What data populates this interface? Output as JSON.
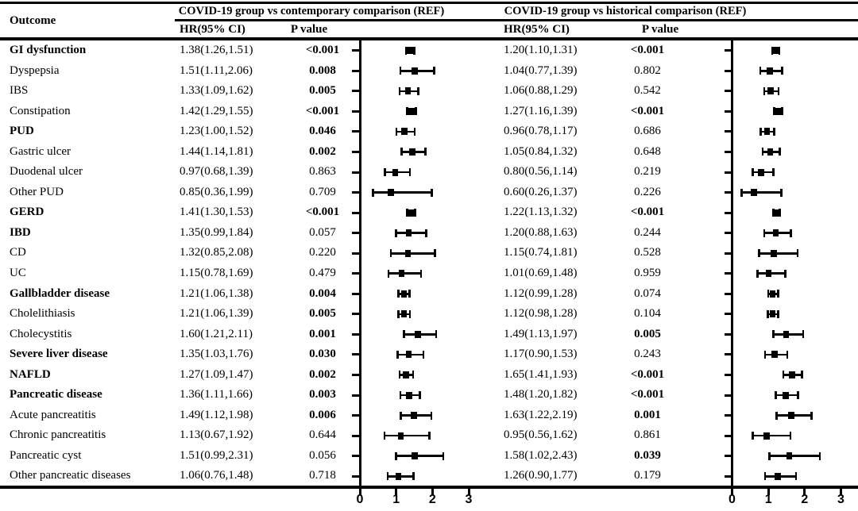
{
  "figure": {
    "outcome_header": "Outcome",
    "group_headers": [
      "COVID-19 group vs contemporary comparison (REF)",
      "COVID-19 group vs historical comparison (REF)"
    ],
    "sub_headers": {
      "hr": "HR(95% CI)",
      "p": "P value"
    }
  },
  "chart_data": {
    "type": "forest",
    "xlim": [
      0,
      3
    ],
    "xticks": [
      "0",
      "1",
      "2",
      "3"
    ],
    "groups": [
      "contemporary",
      "historical"
    ],
    "rows": [
      {
        "outcome": "GI dysfunction",
        "bold": true,
        "contemporary": {
          "hr_ci": "1.38(1.26,1.51)",
          "hr": 1.38,
          "lo": 1.26,
          "hi": 1.51,
          "p": "<0.001",
          "sig": true
        },
        "historical": {
          "hr_ci": "1.20(1.10,1.31)",
          "hr": 1.2,
          "lo": 1.1,
          "hi": 1.31,
          "p": "<0.001",
          "sig": true
        }
      },
      {
        "outcome": "Dyspepsia",
        "bold": false,
        "contemporary": {
          "hr_ci": "1.51(1.11,2.06)",
          "hr": 1.51,
          "lo": 1.11,
          "hi": 2.06,
          "p": "0.008",
          "sig": true
        },
        "historical": {
          "hr_ci": "1.04(0.77,1.39)",
          "hr": 1.04,
          "lo": 0.77,
          "hi": 1.39,
          "p": "0.802",
          "sig": false
        }
      },
      {
        "outcome": "IBS",
        "bold": false,
        "contemporary": {
          "hr_ci": "1.33(1.09,1.62)",
          "hr": 1.33,
          "lo": 1.09,
          "hi": 1.62,
          "p": "0.005",
          "sig": true
        },
        "historical": {
          "hr_ci": "1.06(0.88,1.29)",
          "hr": 1.06,
          "lo": 0.88,
          "hi": 1.29,
          "p": "0.542",
          "sig": false
        }
      },
      {
        "outcome": "Constipation",
        "bold": false,
        "contemporary": {
          "hr_ci": "1.42(1.29,1.55)",
          "hr": 1.42,
          "lo": 1.29,
          "hi": 1.55,
          "p": "<0.001",
          "sig": true
        },
        "historical": {
          "hr_ci": "1.27(1.16,1.39)",
          "hr": 1.27,
          "lo": 1.16,
          "hi": 1.39,
          "p": "<0.001",
          "sig": true
        }
      },
      {
        "outcome": "PUD",
        "bold": true,
        "contemporary": {
          "hr_ci": "1.23(1.00,1.52)",
          "hr": 1.23,
          "lo": 1.0,
          "hi": 1.52,
          "p": "0.046",
          "sig": true
        },
        "historical": {
          "hr_ci": "0.96(0.78,1.17)",
          "hr": 0.96,
          "lo": 0.78,
          "hi": 1.17,
          "p": "0.686",
          "sig": false
        }
      },
      {
        "outcome": "Gastric ulcer",
        "bold": false,
        "contemporary": {
          "hr_ci": "1.44(1.14,1.81)",
          "hr": 1.44,
          "lo": 1.14,
          "hi": 1.81,
          "p": "0.002",
          "sig": true
        },
        "historical": {
          "hr_ci": "1.05(0.84,1.32)",
          "hr": 1.05,
          "lo": 0.84,
          "hi": 1.32,
          "p": "0.648",
          "sig": false
        }
      },
      {
        "outcome": "Duodenal ulcer",
        "bold": false,
        "contemporary": {
          "hr_ci": "0.97(0.68,1.39)",
          "hr": 0.97,
          "lo": 0.68,
          "hi": 1.39,
          "p": "0.863",
          "sig": false
        },
        "historical": {
          "hr_ci": "0.80(0.56,1.14)",
          "hr": 0.8,
          "lo": 0.56,
          "hi": 1.14,
          "p": "0.219",
          "sig": false
        }
      },
      {
        "outcome": "Other PUD",
        "bold": false,
        "contemporary": {
          "hr_ci": "0.85(0.36,1.99)",
          "hr": 0.85,
          "lo": 0.36,
          "hi": 1.99,
          "p": "0.709",
          "sig": false
        },
        "historical": {
          "hr_ci": "0.60(0.26,1.37)",
          "hr": 0.6,
          "lo": 0.26,
          "hi": 1.37,
          "p": "0.226",
          "sig": false
        }
      },
      {
        "outcome": "GERD",
        "bold": true,
        "contemporary": {
          "hr_ci": "1.41(1.30,1.53)",
          "hr": 1.41,
          "lo": 1.3,
          "hi": 1.53,
          "p": "<0.001",
          "sig": true
        },
        "historical": {
          "hr_ci": "1.22(1.13,1.32)",
          "hr": 1.22,
          "lo": 1.13,
          "hi": 1.32,
          "p": "<0.001",
          "sig": true
        }
      },
      {
        "outcome": "IBD",
        "bold": true,
        "contemporary": {
          "hr_ci": "1.35(0.99,1.84)",
          "hr": 1.35,
          "lo": 0.99,
          "hi": 1.84,
          "p": "0.057",
          "sig": false
        },
        "historical": {
          "hr_ci": "1.20(0.88,1.63)",
          "hr": 1.2,
          "lo": 0.88,
          "hi": 1.63,
          "p": "0.244",
          "sig": false
        }
      },
      {
        "outcome": "CD",
        "bold": false,
        "contemporary": {
          "hr_ci": "1.32(0.85,2.08)",
          "hr": 1.32,
          "lo": 0.85,
          "hi": 2.08,
          "p": "0.220",
          "sig": false
        },
        "historical": {
          "hr_ci": "1.15(0.74,1.81)",
          "hr": 1.15,
          "lo": 0.74,
          "hi": 1.81,
          "p": "0.528",
          "sig": false
        }
      },
      {
        "outcome": "UC",
        "bold": false,
        "contemporary": {
          "hr_ci": "1.15(0.78,1.69)",
          "hr": 1.15,
          "lo": 0.78,
          "hi": 1.69,
          "p": "0.479",
          "sig": false
        },
        "historical": {
          "hr_ci": "1.01(0.69,1.48)",
          "hr": 1.01,
          "lo": 0.69,
          "hi": 1.48,
          "p": "0.959",
          "sig": false
        }
      },
      {
        "outcome": "Gallbladder disease",
        "bold": true,
        "contemporary": {
          "hr_ci": "1.21(1.06,1.38)",
          "hr": 1.21,
          "lo": 1.06,
          "hi": 1.38,
          "p": "0.004",
          "sig": true
        },
        "historical": {
          "hr_ci": "1.12(0.99,1.28)",
          "hr": 1.12,
          "lo": 0.99,
          "hi": 1.28,
          "p": "0.074",
          "sig": false
        }
      },
      {
        "outcome": "Cholelithiasis",
        "bold": false,
        "contemporary": {
          "hr_ci": "1.21(1.06,1.39)",
          "hr": 1.21,
          "lo": 1.06,
          "hi": 1.39,
          "p": "0.005",
          "sig": true
        },
        "historical": {
          "hr_ci": "1.12(0.98,1.28)",
          "hr": 1.12,
          "lo": 0.98,
          "hi": 1.28,
          "p": "0.104",
          "sig": false
        }
      },
      {
        "outcome": "Cholecystitis",
        "bold": false,
        "contemporary": {
          "hr_ci": "1.60(1.21,2.11)",
          "hr": 1.6,
          "lo": 1.21,
          "hi": 2.11,
          "p": "0.001",
          "sig": true
        },
        "historical": {
          "hr_ci": "1.49(1.13,1.97)",
          "hr": 1.49,
          "lo": 1.13,
          "hi": 1.97,
          "p": "0.005",
          "sig": true
        }
      },
      {
        "outcome": "Severe liver disease",
        "bold": true,
        "contemporary": {
          "hr_ci": "1.35(1.03,1.76)",
          "hr": 1.35,
          "lo": 1.03,
          "hi": 1.76,
          "p": "0.030",
          "sig": true
        },
        "historical": {
          "hr_ci": "1.17(0.90,1.53)",
          "hr": 1.17,
          "lo": 0.9,
          "hi": 1.53,
          "p": "0.243",
          "sig": false
        }
      },
      {
        "outcome": "NAFLD",
        "bold": true,
        "contemporary": {
          "hr_ci": "1.27(1.09,1.47)",
          "hr": 1.27,
          "lo": 1.09,
          "hi": 1.47,
          "p": "0.002",
          "sig": true
        },
        "historical": {
          "hr_ci": "1.65(1.41,1.93)",
          "hr": 1.65,
          "lo": 1.41,
          "hi": 1.93,
          "p": "<0.001",
          "sig": true
        }
      },
      {
        "outcome": "Pancreatic disease",
        "bold": true,
        "contemporary": {
          "hr_ci": "1.36(1.11,1.66)",
          "hr": 1.36,
          "lo": 1.11,
          "hi": 1.66,
          "p": "0.003",
          "sig": true
        },
        "historical": {
          "hr_ci": "1.48(1.20,1.82)",
          "hr": 1.48,
          "lo": 1.2,
          "hi": 1.82,
          "p": "<0.001",
          "sig": true
        }
      },
      {
        "outcome": "Acute pancreatitis",
        "bold": false,
        "contemporary": {
          "hr_ci": "1.49(1.12,1.98)",
          "hr": 1.49,
          "lo": 1.12,
          "hi": 1.98,
          "p": "0.006",
          "sig": true
        },
        "historical": {
          "hr_ci": "1.63(1.22,2.19)",
          "hr": 1.63,
          "lo": 1.22,
          "hi": 2.19,
          "p": "0.001",
          "sig": true
        }
      },
      {
        "outcome": "Chronic pancreatitis",
        "bold": false,
        "contemporary": {
          "hr_ci": "1.13(0.67,1.92)",
          "hr": 1.13,
          "lo": 0.67,
          "hi": 1.92,
          "p": "0.644",
          "sig": false
        },
        "historical": {
          "hr_ci": "0.95(0.56,1.62)",
          "hr": 0.95,
          "lo": 0.56,
          "hi": 1.62,
          "p": "0.861",
          "sig": false
        }
      },
      {
        "outcome": "Pancreatic cyst",
        "bold": false,
        "contemporary": {
          "hr_ci": "1.51(0.99,2.31)",
          "hr": 1.51,
          "lo": 0.99,
          "hi": 2.31,
          "p": "0.056",
          "sig": false
        },
        "historical": {
          "hr_ci": "1.58(1.02,2.43)",
          "hr": 1.58,
          "lo": 1.02,
          "hi": 2.43,
          "p": "0.039",
          "sig": true
        }
      },
      {
        "outcome": "Other pancreatic diseases",
        "bold": false,
        "contemporary": {
          "hr_ci": "1.06(0.76,1.48)",
          "hr": 1.06,
          "lo": 0.76,
          "hi": 1.48,
          "p": "0.718",
          "sig": false
        },
        "historical": {
          "hr_ci": "1.26(0.90,1.77)",
          "hr": 1.26,
          "lo": 0.9,
          "hi": 1.77,
          "p": "0.179",
          "sig": false
        }
      }
    ]
  }
}
